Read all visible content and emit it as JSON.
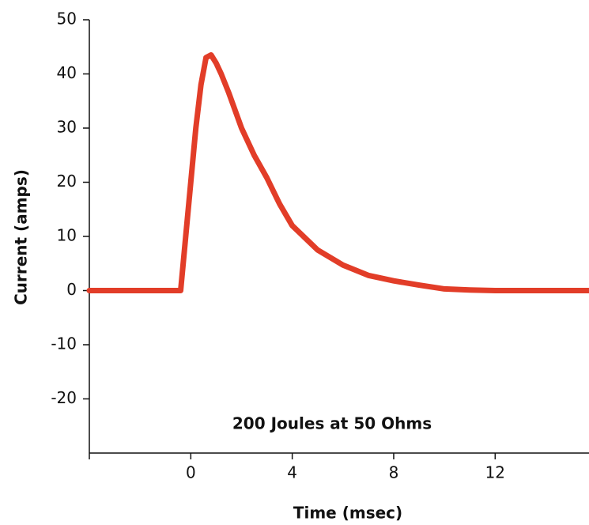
{
  "chart_data": {
    "type": "line",
    "annotation": "200 Joules at 50 Ohms",
    "xlabel": "Time (msec)",
    "ylabel": "Current (amps)",
    "x": [
      -4,
      -0.4,
      -0.2,
      0,
      0.2,
      0.4,
      0.6,
      0.8,
      1.0,
      1.2,
      1.5,
      2,
      2.5,
      3,
      3.5,
      4,
      5,
      6,
      7,
      8,
      9,
      10,
      11,
      12,
      13,
      14,
      15.7
    ],
    "values": [
      0,
      0,
      10,
      20,
      30,
      38,
      43,
      43.5,
      42,
      40,
      36.5,
      30,
      25,
      20.8,
      16,
      12,
      7.5,
      4.7,
      2.8,
      1.8,
      1,
      0.3,
      0.1,
      0,
      0,
      0,
      0
    ],
    "color": "#e23d28",
    "xlim": [
      -4,
      15.7
    ],
    "xticks": [
      0,
      4,
      8,
      12
    ],
    "ylim": [
      -30,
      50
    ],
    "yticks": [
      -20,
      -10,
      0,
      10,
      20,
      30,
      40,
      50
    ]
  }
}
